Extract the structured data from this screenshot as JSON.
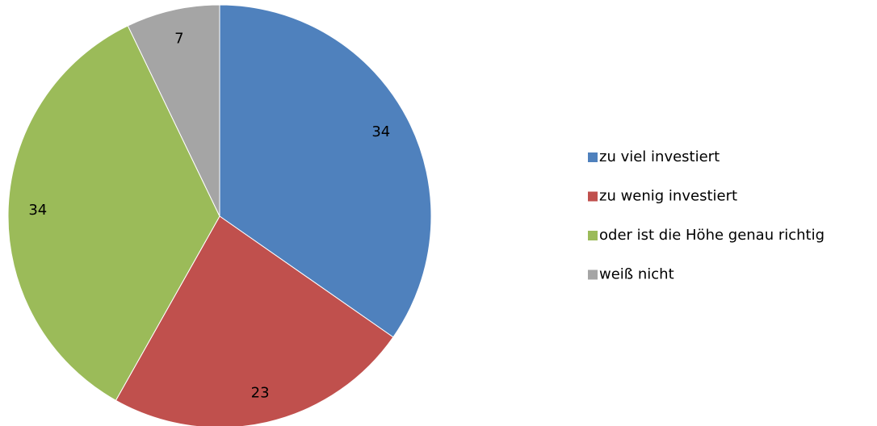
{
  "chart_data": {
    "type": "pie",
    "categories": [
      "zu viel investiert",
      "zu wenig investiert",
      "oder ist die Höhe genau richtig",
      "weiß nicht"
    ],
    "values": [
      34,
      23,
      34,
      7
    ],
    "colors": [
      "#4f81bd",
      "#c0504d",
      "#9bbb59",
      "#a5a5a5"
    ],
    "legend": "right"
  }
}
